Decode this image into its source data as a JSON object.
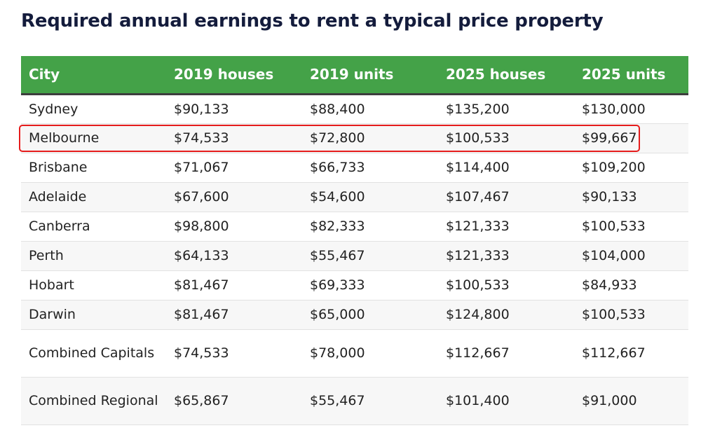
{
  "title": "Required annual earnings to rent a typical price property",
  "table": {
    "headers": [
      "City",
      "2019 houses",
      "2019 units",
      "2025 houses",
      "2025 units"
    ],
    "rows": [
      {
        "city": "Sydney",
        "values": [
          "$90,133",
          "$88,400",
          "$135,200",
          "$130,000"
        ]
      },
      {
        "city": "Melbourne",
        "values": [
          "$74,533",
          "$72,800",
          "$100,533",
          "$99,667"
        ]
      },
      {
        "city": "Brisbane",
        "values": [
          "$71,067",
          "$66,733",
          "$114,400",
          "$109,200"
        ]
      },
      {
        "city": "Adelaide",
        "values": [
          "$67,600",
          "$54,600",
          "$107,467",
          "$90,133"
        ]
      },
      {
        "city": "Canberra",
        "values": [
          "$98,800",
          "$82,333",
          "$121,333",
          "$100,533"
        ]
      },
      {
        "city": "Perth",
        "values": [
          "$64,133",
          "$55,467",
          "$121,333",
          "$104,000"
        ]
      },
      {
        "city": "Hobart",
        "values": [
          "$81,467",
          "$69,333",
          "$100,533",
          "$84,933"
        ]
      },
      {
        "city": "Darwin",
        "values": [
          "$81,467",
          "$65,000",
          "$124,800",
          "$100,533"
        ]
      },
      {
        "city": "Combined Capitals",
        "values": [
          "$74,533",
          "$78,000",
          "$112,667",
          "$112,667"
        ]
      },
      {
        "city": "Combined Regional",
        "values": [
          "$65,867",
          "$55,467",
          "$101,400",
          "$91,000"
        ]
      }
    ]
  },
  "highlighted_row": "Melbourne",
  "colors": {
    "header_bg": "#44a248",
    "title_text": "#141c3c",
    "highlight_border": "#e51c1c"
  }
}
